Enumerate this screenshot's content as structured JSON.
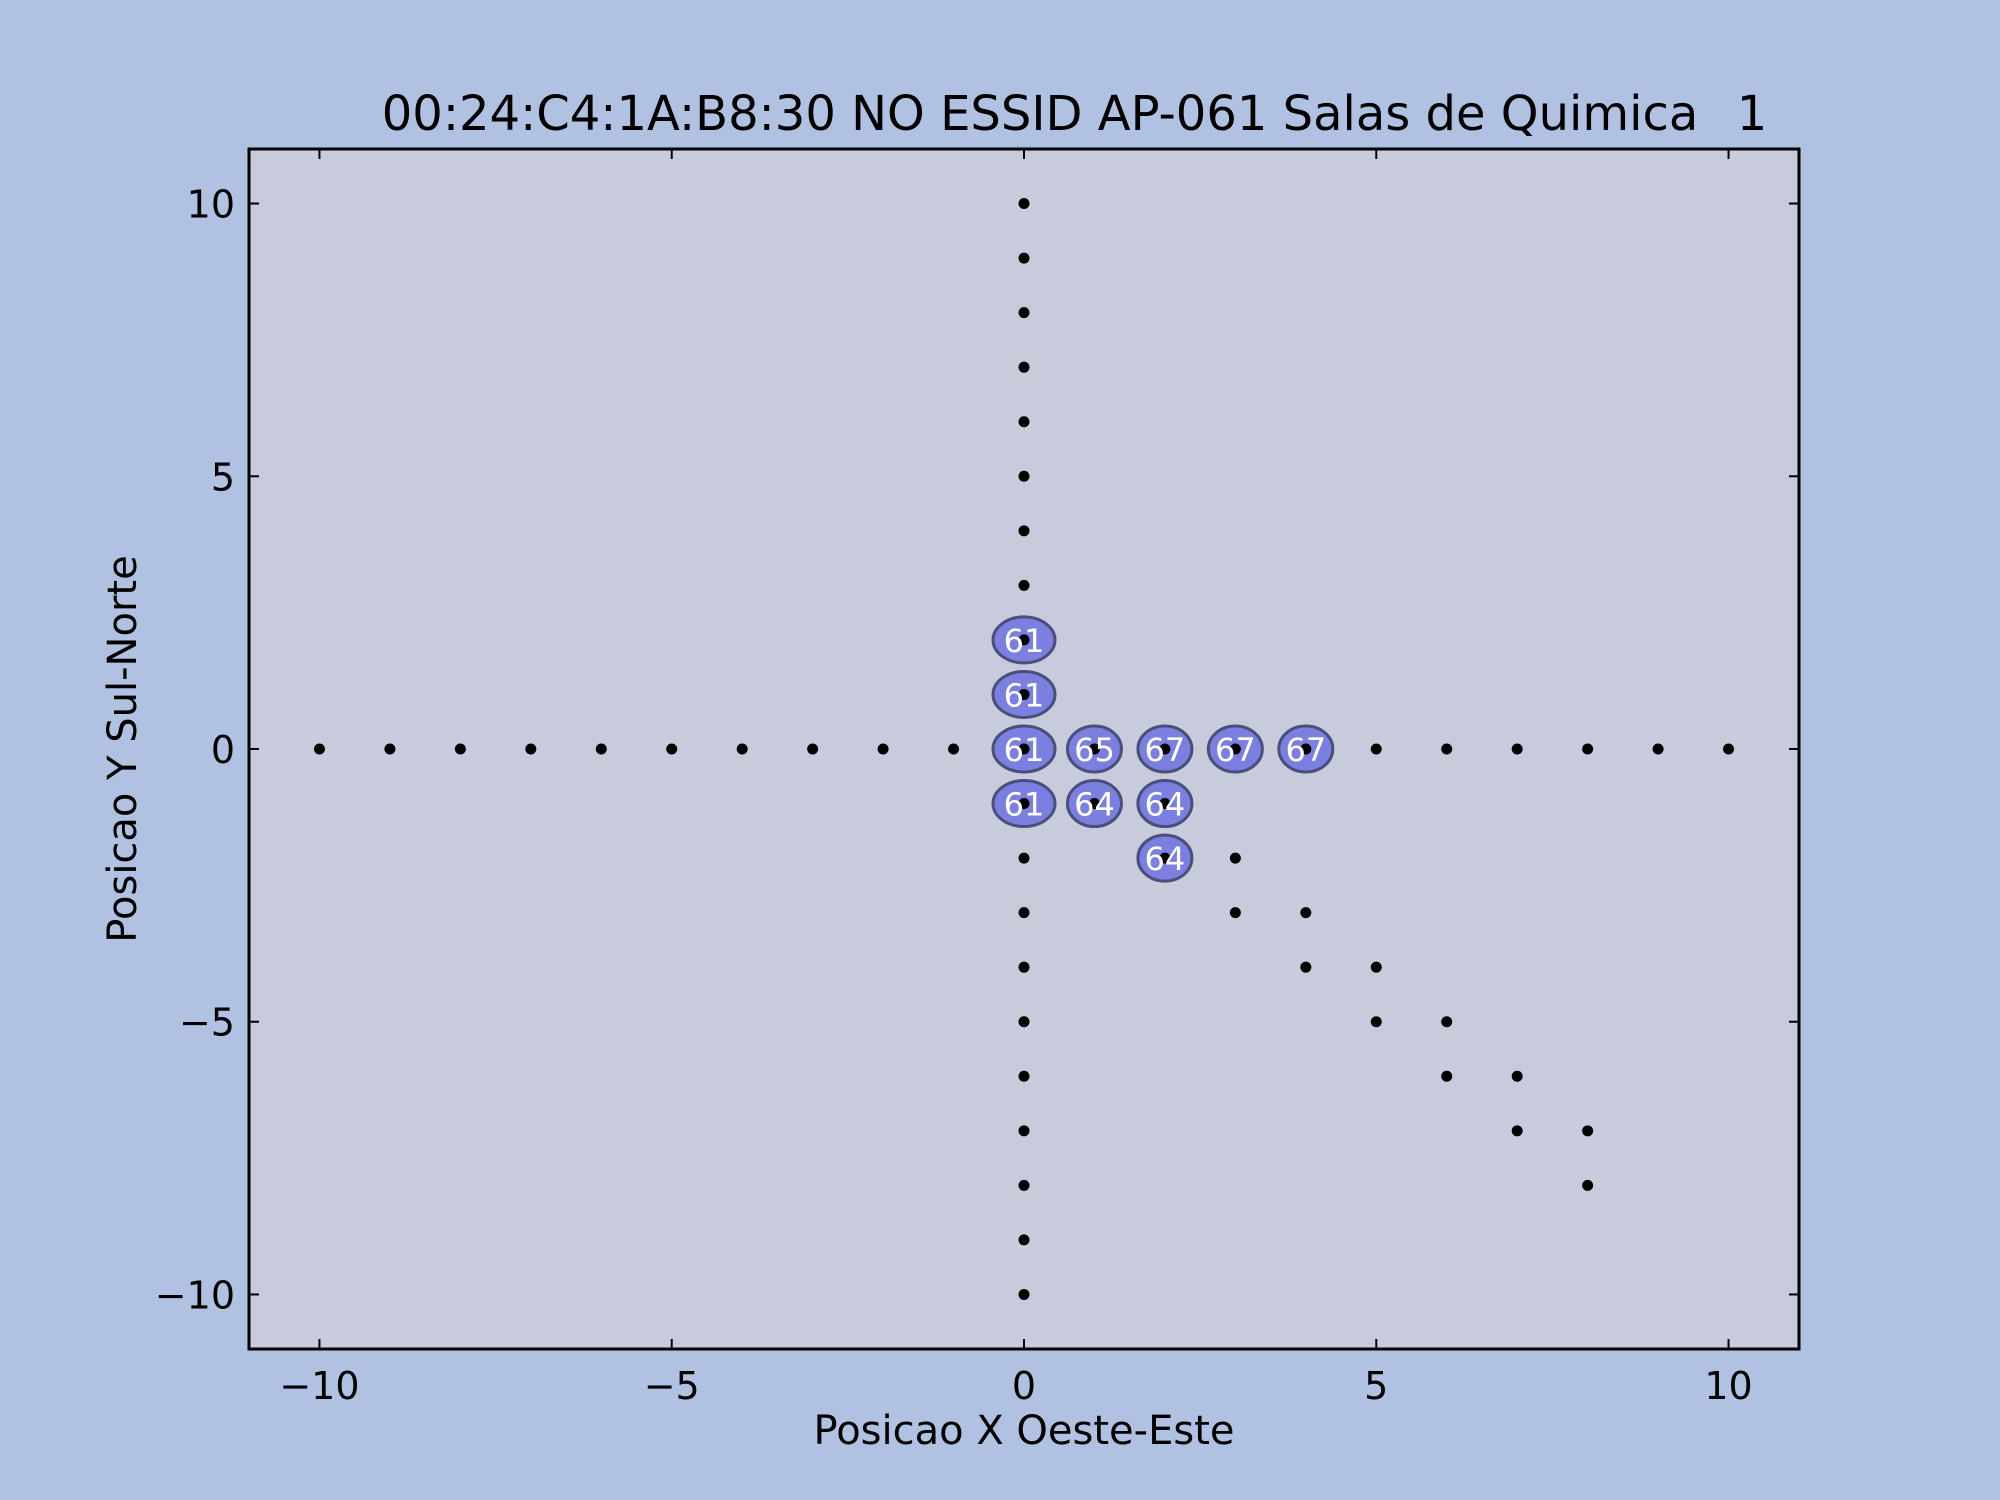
{
  "chart_data": {
    "type": "scatter",
    "title": "00:24:C4:1A:B8:30 NO ESSID AP-061 Salas de Quimica",
    "title_suffix": "1",
    "xlabel": "Posicao X Oeste-Este",
    "ylabel": "Posicao Y Sul-Norte",
    "xlim": [
      -11,
      11
    ],
    "ylim": [
      -11,
      11
    ],
    "xticks": [
      -10,
      -5,
      0,
      5,
      10
    ],
    "yticks": [
      -10,
      -5,
      0,
      5,
      10
    ],
    "xtick_labels": [
      "−10",
      "−5",
      "0",
      "5",
      "10"
    ],
    "ytick_labels": [
      "−10",
      "−5",
      "0",
      "5",
      "10"
    ],
    "grid": false,
    "colors": {
      "figure_bg": "#b0c1e1",
      "axes_bg": "#c8cbdb",
      "point": "#000000",
      "badge_fill": "#7b80e0",
      "badge_stroke": "#4a4e7a",
      "badge_text": "#ffffff"
    },
    "points": [
      {
        "x": -10,
        "y": 0
      },
      {
        "x": -9,
        "y": 0
      },
      {
        "x": -8,
        "y": 0
      },
      {
        "x": -7,
        "y": 0
      },
      {
        "x": -6,
        "y": 0
      },
      {
        "x": -5,
        "y": 0
      },
      {
        "x": -4,
        "y": 0
      },
      {
        "x": -3,
        "y": 0
      },
      {
        "x": -2,
        "y": 0
      },
      {
        "x": -1,
        "y": 0
      },
      {
        "x": 0,
        "y": 0
      },
      {
        "x": 1,
        "y": 0
      },
      {
        "x": 2,
        "y": 0
      },
      {
        "x": 3,
        "y": 0
      },
      {
        "x": 4,
        "y": 0
      },
      {
        "x": 5,
        "y": 0
      },
      {
        "x": 6,
        "y": 0
      },
      {
        "x": 7,
        "y": 0
      },
      {
        "x": 8,
        "y": 0
      },
      {
        "x": 9,
        "y": 0
      },
      {
        "x": 10,
        "y": 0
      },
      {
        "x": 0,
        "y": 10
      },
      {
        "x": 0,
        "y": 9
      },
      {
        "x": 0,
        "y": 8
      },
      {
        "x": 0,
        "y": 7
      },
      {
        "x": 0,
        "y": 6
      },
      {
        "x": 0,
        "y": 5
      },
      {
        "x": 0,
        "y": 4
      },
      {
        "x": 0,
        "y": 3
      },
      {
        "x": 0,
        "y": 2
      },
      {
        "x": 0,
        "y": 1
      },
      {
        "x": 0,
        "y": -1
      },
      {
        "x": 0,
        "y": -2
      },
      {
        "x": 0,
        "y": -3
      },
      {
        "x": 0,
        "y": -4
      },
      {
        "x": 0,
        "y": -5
      },
      {
        "x": 0,
        "y": -6
      },
      {
        "x": 0,
        "y": -7
      },
      {
        "x": 0,
        "y": -8
      },
      {
        "x": 0,
        "y": -9
      },
      {
        "x": 0,
        "y": -10
      },
      {
        "x": 1,
        "y": -1
      },
      {
        "x": 2,
        "y": -1
      },
      {
        "x": 2,
        "y": -2
      },
      {
        "x": 3,
        "y": -2
      },
      {
        "x": 3,
        "y": -3
      },
      {
        "x": 4,
        "y": -3
      },
      {
        "x": 4,
        "y": -4
      },
      {
        "x": 5,
        "y": -4
      },
      {
        "x": 5,
        "y": -5
      },
      {
        "x": 6,
        "y": -5
      },
      {
        "x": 6,
        "y": -6
      },
      {
        "x": 7,
        "y": -6
      },
      {
        "x": 7,
        "y": -7
      },
      {
        "x": 8,
        "y": -7
      },
      {
        "x": 8,
        "y": -8
      }
    ],
    "signal_labels": [
      {
        "x": 0,
        "y": 2,
        "value": 61
      },
      {
        "x": 0,
        "y": 1,
        "value": 61
      },
      {
        "x": 0,
        "y": 0,
        "value": 61
      },
      {
        "x": 1,
        "y": 0,
        "value": 65
      },
      {
        "x": 2,
        "y": 0,
        "value": 67
      },
      {
        "x": 3,
        "y": 0,
        "value": 67
      },
      {
        "x": 4,
        "y": 0,
        "value": 67
      },
      {
        "x": 0,
        "y": -1,
        "value": 61
      },
      {
        "x": 1,
        "y": -1,
        "value": 64
      },
      {
        "x": 2,
        "y": -1,
        "value": 64
      },
      {
        "x": 2,
        "y": -2,
        "value": 64
      }
    ]
  }
}
